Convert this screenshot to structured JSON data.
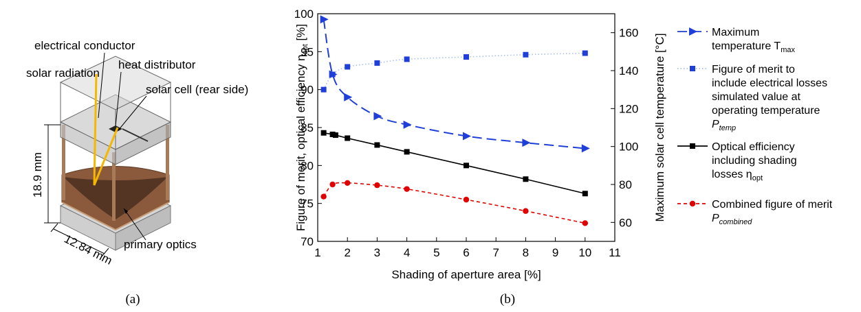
{
  "panel_a": {
    "caption": "(a)",
    "labels": {
      "electrical_conductor": "electrical conductor",
      "solar_radiation": "solar radiation",
      "heat_distributor": "heat distributor",
      "solar_cell": "solar cell (rear side)",
      "height": "18.9 mm",
      "width": "12.84 mm",
      "primary_optics": "primary optics"
    },
    "colors": {
      "radiation": "#f5b800",
      "glass": "#c8c8c8",
      "optics": "#8b5a3c",
      "optics_dark": "#4a2f1f"
    }
  },
  "panel_b": {
    "caption": "(b)"
  },
  "chart_data": {
    "type": "line",
    "xlabel": "Shading of aperture area [%]",
    "ylabel_left_main": "Figure of merit, optical efficiency η",
    "ylabel_left_sub": "opt",
    "ylabel_left_unit": " [%]",
    "ylabel_right": "Maximum solar cell temperature [°C]",
    "xlim": [
      1,
      11
    ],
    "ylim_left": [
      70,
      100
    ],
    "ylim_right": [
      50,
      170
    ],
    "xticks": [
      "1",
      "2",
      "3",
      "4",
      "5",
      "6",
      "7",
      "8",
      "9",
      "10",
      "11"
    ],
    "yticks_left": [
      "70",
      "75",
      "80",
      "85",
      "90",
      "95",
      "100"
    ],
    "yticks_right": [
      "60",
      "80",
      "100",
      "120",
      "140",
      "160"
    ],
    "series": [
      {
        "key": "tmax",
        "axis": "right",
        "color": "#1f3fd8",
        "dash": "14,7",
        "marker": "triangle",
        "x": [
          1.2,
          1.5,
          2,
          3,
          4,
          6,
          8,
          10
        ],
        "y": [
          167,
          138,
          126,
          116,
          111.5,
          105.5,
          102,
          99
        ]
      },
      {
        "key": "ptemp",
        "axis": "left",
        "color": "#1f3fd8",
        "dash": "1.5,3",
        "marker": "square",
        "lineColor": "#a6c1ea",
        "x": [
          1.2,
          1.5,
          2,
          3,
          4,
          6,
          8,
          10
        ],
        "y": [
          90,
          92,
          93,
          93.5,
          94,
          94.3,
          94.6,
          94.8
        ]
      },
      {
        "key": "eta",
        "axis": "left",
        "color": "#000000",
        "dash": "",
        "marker": "square",
        "x": [
          1.2,
          1.5,
          1.6,
          2,
          3,
          4,
          6,
          8,
          10
        ],
        "y": [
          84.3,
          84.1,
          84.0,
          83.6,
          82.7,
          81.8,
          80.0,
          78.2,
          76.3
        ]
      },
      {
        "key": "pcomb",
        "axis": "left",
        "color": "#e00000",
        "dash": "5,4",
        "marker": "circle",
        "x": [
          1.2,
          1.5,
          2,
          3,
          4,
          6,
          8,
          10
        ],
        "y": [
          75.9,
          77.5,
          77.7,
          77.4,
          76.9,
          75.5,
          74.0,
          72.4
        ]
      }
    ],
    "legend": [
      {
        "series": "tmax",
        "lines": [
          "Maximum",
          "temperature T"
        ],
        "sub": "max"
      },
      {
        "series": "ptemp",
        "lines": [
          "Figure of merit to",
          "include electrical losses",
          "simulated value at",
          "operating temperature"
        ],
        "math": "P",
        "mathsub": "temp"
      },
      {
        "series": "eta",
        "lines": [
          "Optical efficiency",
          "including shading",
          "losses η"
        ],
        "sub": "opt"
      },
      {
        "series": "pcomb",
        "lines": [
          "Combined figure of merit"
        ],
        "math": "P",
        "mathsub": "combined"
      }
    ],
    "legend_placement": "right"
  }
}
